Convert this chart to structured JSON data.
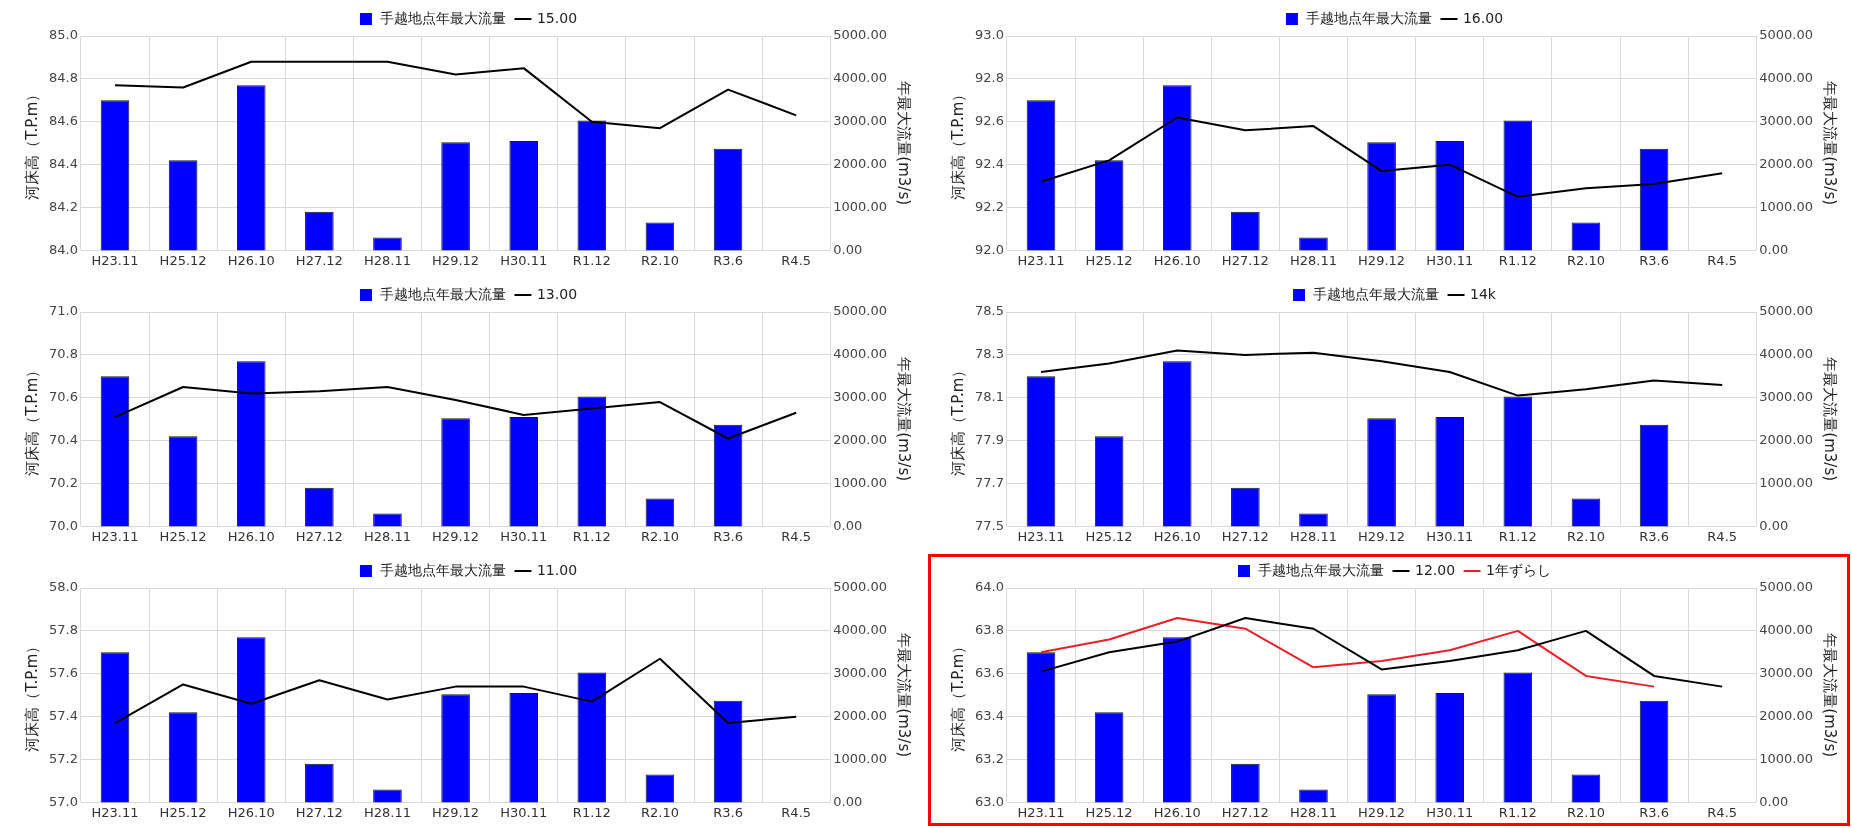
{
  "chart_data": [
    {
      "type": "bar",
      "categories": [
        "H23.11",
        "H25.12",
        "H26.10",
        "H27.12",
        "H28.11",
        "H29.12",
        "H30.11",
        "R1.12",
        "R2.10",
        "R3.6",
        "R4.5"
      ],
      "ylabel": "河床高（T.P.m）",
      "y2label": "年最大流量(m3/s)",
      "ylim": [
        84.0,
        85.0
      ],
      "yticks": [
        {
          "value": 84.0,
          "label": "84.0"
        },
        {
          "value": 84.2,
          "label": "84.2"
        },
        {
          "value": 84.4,
          "label": "84.4"
        },
        {
          "value": 84.6,
          "label": "84.6"
        },
        {
          "value": 84.8,
          "label": "84.8"
        },
        {
          "value": 85.0,
          "label": "85.0"
        }
      ],
      "y2lim": [
        0,
        5000
      ],
      "y2ticks": [
        {
          "value": 0,
          "label": "0.00"
        },
        {
          "value": 1000,
          "label": "1000.00"
        },
        {
          "value": 2000,
          "label": "2000.00"
        },
        {
          "value": 3000,
          "label": "3000.00"
        },
        {
          "value": 4000,
          "label": "4000.00"
        },
        {
          "value": 5000,
          "label": "5000.00"
        }
      ],
      "grid": true,
      "legend": "top",
      "marker": "none",
      "series": [
        {
          "name": "手越地点年最大流量",
          "axis": "y2",
          "color": "#0000ff",
          "values": [
            3500,
            2100,
            3850,
            900,
            300,
            2520,
            2550,
            3030,
            650,
            2370,
            null
          ]
        },
        {
          "name": "15.00",
          "type": "line",
          "color": "#000000",
          "values": [
            84.77,
            84.76,
            84.88,
            84.88,
            84.88,
            84.82,
            84.85,
            84.6,
            84.57,
            84.75,
            84.63
          ]
        }
      ]
    },
    {
      "type": "bar",
      "categories": [
        "H23.11",
        "H25.12",
        "H26.10",
        "H27.12",
        "H28.11",
        "H29.12",
        "H30.11",
        "R1.12",
        "R2.10",
        "R3.6",
        "R4.5"
      ],
      "ylabel": "河床高（T.P.m）",
      "y2label": "年最大流量(m3/s)",
      "ylim": [
        92.0,
        93.0
      ],
      "yticks": [
        {
          "value": 92.0,
          "label": "92.0"
        },
        {
          "value": 92.2,
          "label": "92.2"
        },
        {
          "value": 92.4,
          "label": "92.4"
        },
        {
          "value": 92.6,
          "label": "92.6"
        },
        {
          "value": 92.8,
          "label": "92.8"
        },
        {
          "value": 93.0,
          "label": "93.0"
        }
      ],
      "y2lim": [
        0,
        5000
      ],
      "y2ticks": [
        {
          "value": 0,
          "label": "0.00"
        },
        {
          "value": 1000,
          "label": "1000.00"
        },
        {
          "value": 2000,
          "label": "2000.00"
        },
        {
          "value": 3000,
          "label": "3000.00"
        },
        {
          "value": 4000,
          "label": "4000.00"
        },
        {
          "value": 5000,
          "label": "5000.00"
        }
      ],
      "grid": true,
      "legend": "top",
      "marker": "none",
      "series": [
        {
          "name": "手越地点年最大流量",
          "axis": "y2",
          "color": "#0000ff",
          "values": [
            3500,
            2100,
            3850,
            900,
            300,
            2520,
            2550,
            3030,
            650,
            2370,
            null
          ]
        },
        {
          "name": "16.00",
          "type": "line",
          "color": "#000000",
          "values": [
            92.32,
            92.42,
            92.62,
            92.56,
            92.58,
            92.37,
            92.4,
            92.25,
            92.29,
            92.31,
            92.36
          ]
        }
      ]
    },
    {
      "type": "bar",
      "categories": [
        "H23.11",
        "H25.12",
        "H26.10",
        "H27.12",
        "H28.11",
        "H29.12",
        "H30.11",
        "R1.12",
        "R2.10",
        "R3.6",
        "R4.5"
      ],
      "ylabel": "河床高（T.P.m）",
      "y2label": "年最大流量(m3/s)",
      "ylim": [
        70.0,
        71.0
      ],
      "yticks": [
        {
          "value": 70.0,
          "label": "70.0"
        },
        {
          "value": 70.2,
          "label": "70.2"
        },
        {
          "value": 70.4,
          "label": "70.4"
        },
        {
          "value": 70.6,
          "label": "70.6"
        },
        {
          "value": 70.8,
          "label": "70.8"
        },
        {
          "value": 71.0,
          "label": "71.0"
        }
      ],
      "y2lim": [
        0,
        5000
      ],
      "y2ticks": [
        {
          "value": 0,
          "label": "0.00"
        },
        {
          "value": 1000,
          "label": "1000.00"
        },
        {
          "value": 2000,
          "label": "2000.00"
        },
        {
          "value": 3000,
          "label": "3000.00"
        },
        {
          "value": 4000,
          "label": "4000.00"
        },
        {
          "value": 5000,
          "label": "5000.00"
        }
      ],
      "grid": true,
      "legend": "top",
      "marker": "none",
      "series": [
        {
          "name": "手越地点年最大流量",
          "axis": "y2",
          "color": "#0000ff",
          "values": [
            3500,
            2100,
            3850,
            900,
            300,
            2520,
            2550,
            3030,
            650,
            2370,
            null
          ]
        },
        {
          "name": "13.00",
          "type": "line",
          "color": "#000000",
          "values": [
            70.51,
            70.65,
            70.62,
            70.63,
            70.65,
            70.59,
            70.52,
            70.55,
            70.58,
            70.41,
            70.53
          ]
        }
      ]
    },
    {
      "type": "bar",
      "categories": [
        "H23.11",
        "H25.12",
        "H26.10",
        "H27.12",
        "H28.11",
        "H29.12",
        "H30.11",
        "R1.12",
        "R2.10",
        "R3.6",
        "R4.5"
      ],
      "ylabel": "河床高（T.P.m）",
      "y2label": "年最大流量(m3/s)",
      "ylim": [
        77.5,
        78.5
      ],
      "yticks": [
        {
          "value": 77.5,
          "label": "77.5"
        },
        {
          "value": 77.7,
          "label": "77.7"
        },
        {
          "value": 77.9,
          "label": "77.9"
        },
        {
          "value": 78.1,
          "label": "78.1"
        },
        {
          "value": 78.3,
          "label": "78.3"
        },
        {
          "value": 78.5,
          "label": "78.5"
        }
      ],
      "y2lim": [
        0,
        5000
      ],
      "y2ticks": [
        {
          "value": 0,
          "label": "0.00"
        },
        {
          "value": 1000,
          "label": "1000.00"
        },
        {
          "value": 2000,
          "label": "2000.00"
        },
        {
          "value": 3000,
          "label": "3000.00"
        },
        {
          "value": 4000,
          "label": "4000.00"
        },
        {
          "value": 5000,
          "label": "5000.00"
        }
      ],
      "grid": true,
      "legend": "top",
      "marker": "none",
      "series": [
        {
          "name": "手越地点年最大流量",
          "axis": "y2",
          "color": "#0000ff",
          "values": [
            3500,
            2100,
            3850,
            900,
            300,
            2520,
            2550,
            3030,
            650,
            2370,
            null
          ]
        },
        {
          "name": "14k",
          "type": "line",
          "color": "#000000",
          "values": [
            78.22,
            78.26,
            78.32,
            78.3,
            78.31,
            78.27,
            78.22,
            78.11,
            78.14,
            78.18,
            78.16
          ]
        }
      ]
    },
    {
      "type": "bar",
      "categories": [
        "H23.11",
        "H25.12",
        "H26.10",
        "H27.12",
        "H28.11",
        "H29.12",
        "H30.11",
        "R1.12",
        "R2.10",
        "R3.6",
        "R4.5"
      ],
      "ylabel": "河床高（T.P.m）",
      "y2label": "年最大流量(m3/s)",
      "ylim": [
        57.0,
        58.0
      ],
      "yticks": [
        {
          "value": 57.0,
          "label": "57.0"
        },
        {
          "value": 57.2,
          "label": "57.2"
        },
        {
          "value": 57.4,
          "label": "57.4"
        },
        {
          "value": 57.6,
          "label": "57.6"
        },
        {
          "value": 57.8,
          "label": "57.8"
        },
        {
          "value": 58.0,
          "label": "58.0"
        }
      ],
      "y2lim": [
        0,
        5000
      ],
      "y2ticks": [
        {
          "value": 0,
          "label": "0.00"
        },
        {
          "value": 1000,
          "label": "1000.00"
        },
        {
          "value": 2000,
          "label": "2000.00"
        },
        {
          "value": 3000,
          "label": "3000.00"
        },
        {
          "value": 4000,
          "label": "4000.00"
        },
        {
          "value": 5000,
          "label": "5000.00"
        }
      ],
      "grid": true,
      "legend": "top",
      "marker": "none",
      "series": [
        {
          "name": "手越地点年最大流量",
          "axis": "y2",
          "color": "#0000ff",
          "values": [
            3500,
            2100,
            3850,
            900,
            300,
            2520,
            2550,
            3030,
            650,
            2370,
            null
          ]
        },
        {
          "name": "11.00",
          "type": "line",
          "color": "#000000",
          "values": [
            57.37,
            57.55,
            57.46,
            57.57,
            57.48,
            57.54,
            57.54,
            57.47,
            57.67,
            57.37,
            57.4
          ]
        }
      ]
    },
    {
      "type": "bar",
      "categories": [
        "H23.11",
        "H25.12",
        "H26.10",
        "H27.12",
        "H28.11",
        "H29.12",
        "H30.11",
        "R1.12",
        "R2.10",
        "R3.6",
        "R4.5"
      ],
      "ylabel": "河床高（T.P.m）",
      "y2label": "年最大流量(m3/s)",
      "ylim": [
        63.0,
        64.0
      ],
      "yticks": [
        {
          "value": 63.0,
          "label": "63.0"
        },
        {
          "value": 63.2,
          "label": "63.2"
        },
        {
          "value": 63.4,
          "label": "63.4"
        },
        {
          "value": 63.6,
          "label": "63.6"
        },
        {
          "value": 63.8,
          "label": "63.8"
        },
        {
          "value": 64.0,
          "label": "64.0"
        }
      ],
      "y2lim": [
        0,
        5000
      ],
      "y2ticks": [
        {
          "value": 0,
          "label": "0.00"
        },
        {
          "value": 1000,
          "label": "1000.00"
        },
        {
          "value": 2000,
          "label": "2000.00"
        },
        {
          "value": 3000,
          "label": "3000.00"
        },
        {
          "value": 4000,
          "label": "4000.00"
        },
        {
          "value": 5000,
          "label": "5000.00"
        }
      ],
      "grid": true,
      "legend": "top",
      "marker": "none",
      "series": [
        {
          "name": "手越地点年最大流量",
          "axis": "y2",
          "color": "#0000ff",
          "values": [
            3500,
            2100,
            3850,
            900,
            300,
            2520,
            2550,
            3030,
            650,
            2370,
            null
          ]
        },
        {
          "name": "12.00",
          "type": "line",
          "color": "#000000",
          "values": [
            63.61,
            63.7,
            63.75,
            63.86,
            63.81,
            63.62,
            63.66,
            63.71,
            63.8,
            63.59,
            63.54
          ]
        },
        {
          "name": "1年ずらし",
          "type": "line",
          "color": "#e8202a",
          "values": [
            63.7,
            63.76,
            63.86,
            63.81,
            63.63,
            63.66,
            63.71,
            63.8,
            63.59,
            63.54,
            null
          ]
        }
      ]
    }
  ]
}
